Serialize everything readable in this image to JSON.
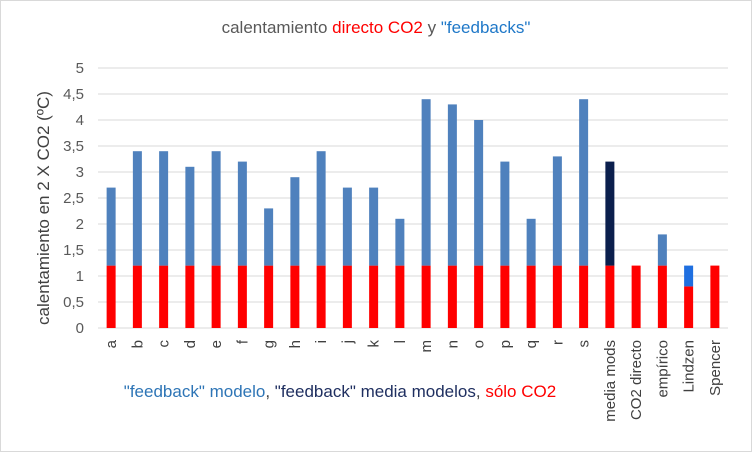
{
  "chart_data": {
    "type": "bar",
    "title_parts": [
      {
        "text": "calentamiento ",
        "color": "#595959"
      },
      {
        "text": "directo CO2",
        "color": "#ff0000"
      },
      {
        "text": " y ",
        "color": "#595959"
      },
      {
        "text": "\"feedbacks\"",
        "color": "#1f78c8"
      }
    ],
    "ylabel": "calentamiento en 2  X CO2 (ºC)",
    "xlabel": "",
    "ylim": [
      0,
      5
    ],
    "yticks": [
      "0",
      "0,5",
      "1",
      "1,5",
      "2",
      "2,5",
      "3",
      "3,5",
      "4",
      "4,5",
      "5"
    ],
    "grid": true,
    "stacked": true,
    "categories": [
      "a",
      "b",
      "c",
      "d",
      "e",
      "f",
      "g",
      "h",
      "i",
      "j",
      "k",
      "l",
      "m",
      "n",
      "o",
      "p",
      "q",
      "r",
      "s",
      "media mods",
      "CO2 directo",
      "empírico",
      "Lindzen",
      "Spencer"
    ],
    "series": [
      {
        "name": "sólo CO2",
        "color": "#ff0000",
        "values": [
          1.2,
          1.2,
          1.2,
          1.2,
          1.2,
          1.2,
          1.2,
          1.2,
          1.2,
          1.2,
          1.2,
          1.2,
          1.2,
          1.2,
          1.2,
          1.2,
          1.2,
          1.2,
          1.2,
          1.2,
          1.2,
          1.2,
          0.8,
          1.2
        ]
      },
      {
        "name": "\"feedback\" modelo",
        "color": "#4f81bd",
        "values": [
          1.5,
          2.2,
          2.2,
          1.9,
          2.2,
          2.0,
          1.1,
          1.7,
          2.2,
          1.5,
          1.5,
          0.9,
          3.2,
          3.1,
          2.8,
          2.0,
          0.9,
          2.1,
          3.2,
          0,
          0,
          0.6,
          0,
          0
        ]
      },
      {
        "name": "\"feedback\" media modelos",
        "color": "#0b1f4d",
        "values": [
          0,
          0,
          0,
          0,
          0,
          0,
          0,
          0,
          0,
          0,
          0,
          0,
          0,
          0,
          0,
          0,
          0,
          0,
          0,
          2.0,
          0,
          0,
          0,
          0
        ]
      },
      {
        "name": "Lindzen",
        "color": "#1f6fe0",
        "values": [
          0,
          0,
          0,
          0,
          0,
          0,
          0,
          0,
          0,
          0,
          0,
          0,
          0,
          0,
          0,
          0,
          0,
          0,
          0,
          0,
          0,
          0,
          0.4,
          0
        ]
      }
    ],
    "legend_parts": [
      {
        "text": "\"feedback\" modelo",
        "color": "#2e75b6"
      },
      {
        "text": ", ",
        "color": "#404040"
      },
      {
        "text": "\"feedback\" media modelos",
        "color": "#1f2f60"
      },
      {
        "text": ", ",
        "color": "#404040"
      },
      {
        "text": "sólo CO2",
        "color": "#ff0000"
      }
    ],
    "legend_position": "bottom"
  }
}
